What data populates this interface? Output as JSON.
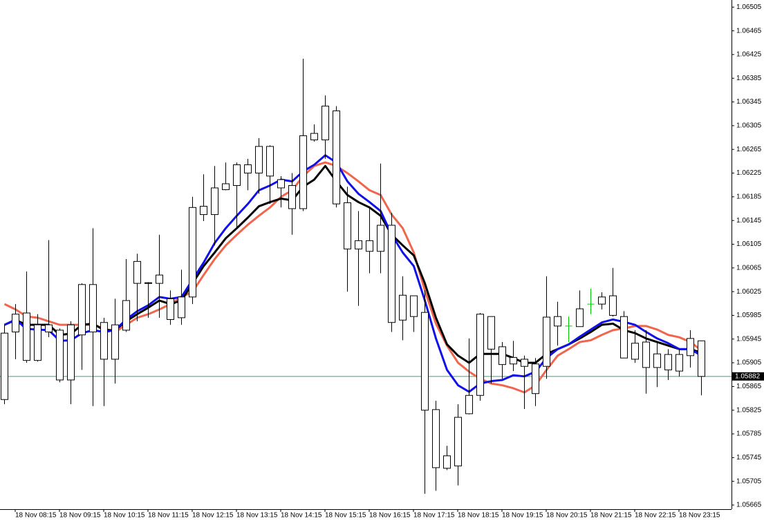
{
  "chart_data": {
    "type": "candlestick",
    "categories": [
      null,
      "18 Nov 08:15",
      null,
      null,
      null,
      "18 Nov 09:15",
      null,
      null,
      null,
      "18 Nov 10:15",
      null,
      null,
      null,
      "18 Nov 11:15",
      null,
      null,
      null,
      "18 Nov 12:15",
      null,
      null,
      null,
      "18 Nov 13:15",
      null,
      null,
      null,
      "18 Nov 14:15",
      null,
      null,
      null,
      "18 Nov 15:15",
      null,
      null,
      null,
      "18 Nov 16:15",
      null,
      null,
      null,
      "18 Nov 17:15",
      null,
      null,
      null,
      "18 Nov 18:15",
      null,
      null,
      null,
      "18 Nov 19:15",
      null,
      null,
      null,
      "18 Nov 20:15",
      null,
      null,
      null,
      "18 Nov 21:15",
      null,
      null,
      null,
      "18 Nov 22:15",
      null,
      null,
      null,
      "18 Nov 23:15",
      null,
      null
    ],
    "open": [
      1.05843,
      1.05987,
      1.05989,
      1.05909,
      1.05969,
      1.0596,
      1.05876,
      1.05952,
      1.06037,
      1.05973,
      1.05911,
      1.0596,
      1.06039,
      1.0604,
      1.06039,
      1.06013,
      1.05981,
      1.06016,
      1.06169,
      1.06155,
      1.06197,
      1.06204,
      1.06239,
      1.06225,
      1.0627,
      1.06214,
      1.06204,
      1.06165,
      1.06292,
      1.06281,
      1.0633,
      1.06175,
      1.06097,
      1.06111,
      1.06093,
      1.06137,
      1.05977,
      1.06018,
      1.0599,
      1.05826,
      1.05727,
      1.05731,
      1.05819,
      1.0585,
      1.05983,
      1.05932,
      1.05903,
      1.05911,
      1.05903,
      1.05899,
      1.05983,
      1.05967,
      1.05966,
      1.06004,
      1.06004,
      1.06018,
      1.05983,
      1.05911,
      1.0594,
      1.05897,
      1.05919,
      1.05891,
      1.05946,
      1.05942
    ],
    "high": [
      1.05969,
      1.06004,
      1.06059,
      1.05987,
      1.06112,
      1.05963,
      1.05975,
      1.06039,
      1.06132,
      1.05981,
      1.06013,
      1.0608,
      1.06089,
      1.06041,
      1.06121,
      1.06027,
      1.06062,
      1.06185,
      1.06223,
      1.06237,
      1.06243,
      1.06243,
      1.06249,
      1.06284,
      1.06272,
      1.0622,
      1.06225,
      1.06418,
      1.06307,
      1.06356,
      1.06338,
      1.06202,
      1.06161,
      1.06169,
      1.06241,
      1.06158,
      1.06051,
      1.06018,
      1.06027,
      1.05841,
      1.05765,
      1.05835,
      1.05946,
      1.05989,
      1.05983,
      1.0594,
      1.05942,
      1.05917,
      1.05913,
      1.06051,
      1.06008,
      1.05983,
      1.06027,
      1.0603,
      1.06024,
      1.06065,
      1.05992,
      1.0596,
      1.0596,
      1.0594,
      1.05928,
      1.05928,
      1.0596,
      1.05942
    ],
    "low": [
      1.05835,
      1.05911,
      1.05905,
      1.05907,
      1.05948,
      1.05872,
      1.05835,
      1.05893,
      1.05832,
      1.05832,
      1.0587,
      1.05957,
      1.05975,
      1.05981,
      1.05981,
      1.05969,
      1.05969,
      1.06004,
      1.06144,
      1.06103,
      1.06196,
      1.06132,
      1.06196,
      1.0619,
      1.06173,
      1.06167,
      1.06121,
      1.06161,
      1.06278,
      1.06249,
      1.06167,
      1.06025,
      1.06001,
      1.06056,
      1.06056,
      1.05957,
      1.05943,
      1.05957,
      1.05684,
      1.05689,
      1.05724,
      1.05698,
      1.05818,
      1.05841,
      1.0587,
      1.05878,
      1.05891,
      1.05827,
      1.05832,
      1.05878,
      1.05934,
      1.0594,
      1.05966,
      1.05987,
      1.05995,
      1.05983,
      1.05913,
      1.05905,
      1.05853,
      1.05864,
      1.05876,
      1.05882,
      1.05897,
      1.0585
    ],
    "close": [
      1.05955,
      1.05957,
      1.05909,
      1.05969,
      1.05957,
      1.05876,
      1.05969,
      1.06037,
      1.05957,
      1.05911,
      1.05969,
      1.0601,
      1.06076,
      1.06039,
      1.06053,
      1.05978,
      1.06016,
      1.06167,
      1.06155,
      1.062,
      1.06207,
      1.06239,
      1.06225,
      1.0627,
      1.0622,
      1.062,
      1.06165,
      1.06288,
      1.06281,
      1.06338,
      1.06173,
      1.06097,
      1.06111,
      1.06093,
      1.06137,
      1.05973,
      1.06019,
      1.05983,
      1.05825,
      1.05728,
      1.05748,
      1.05813,
      1.0585,
      1.05987,
      1.05928,
      1.05902,
      1.05914,
      1.05899,
      1.05853,
      1.05982,
      1.05967,
      1.05967,
      1.05996,
      1.06004,
      1.06016,
      1.05985,
      1.05913,
      1.05938,
      1.05897,
      1.0592,
      1.05893,
      1.05919,
      1.05917,
      1.05882
    ],
    "candle_color": "#000000",
    "doji_color": "#00c800",
    "overlays": [
      {
        "color": "#f0654c",
        "values": [
          1.06004,
          1.05995,
          1.05983,
          1.05981,
          1.05975,
          1.05969,
          1.05969,
          1.05969,
          1.05969,
          1.05963,
          1.05957,
          1.05969,
          1.05981,
          1.05987,
          1.05995,
          1.06004,
          1.06016,
          1.06025,
          1.06053,
          1.0608,
          1.06103,
          1.06121,
          1.06138,
          1.06153,
          1.06167,
          1.06185,
          1.06196,
          1.0622,
          1.06237,
          1.06243,
          1.06237,
          1.06225,
          1.06211,
          1.06196,
          1.06188,
          1.06155,
          1.06132,
          1.06091,
          1.06027,
          1.05971,
          1.05934,
          1.05905,
          1.0589,
          1.05878,
          1.0587,
          1.05867,
          1.05862,
          1.05855,
          1.05867,
          1.05893,
          1.05917,
          1.05928,
          1.0594,
          1.05943,
          1.05952,
          1.0596,
          1.05963,
          1.05967,
          1.05967,
          1.05961,
          1.05952,
          1.05948,
          1.0594,
          1.05926
        ]
      },
      {
        "color": "#000000",
        "values": [
          1.05969,
          1.05977,
          1.05969,
          1.05969,
          1.05969,
          1.05952,
          1.05954,
          1.05969,
          1.05971,
          1.0596,
          1.0596,
          1.05975,
          1.05987,
          1.05998,
          1.0601,
          1.06004,
          1.0601,
          1.06039,
          1.06068,
          1.06091,
          1.06115,
          1.06132,
          1.0615,
          1.06169,
          1.06176,
          1.06182,
          1.06179,
          1.06202,
          1.06214,
          1.06237,
          1.06211,
          1.06188,
          1.06176,
          1.06167,
          1.06153,
          1.06121,
          1.06103,
          1.06086,
          1.06039,
          1.05981,
          1.05936,
          1.05917,
          1.05905,
          1.0592,
          1.0592,
          1.0592,
          1.05913,
          1.05905,
          1.05905,
          1.0592,
          1.05928,
          1.05936,
          1.05946,
          1.05957,
          1.05969,
          1.05971,
          1.0596,
          1.05955,
          1.05946,
          1.0594,
          1.05934,
          1.05928,
          1.05928,
          1.05922
        ]
      },
      {
        "color": "#1010e8",
        "values": [
          1.05969,
          1.05978,
          1.05962,
          1.05961,
          1.0596,
          1.05942,
          1.05943,
          1.05955,
          1.0596,
          1.05957,
          1.0596,
          1.05978,
          1.05992,
          1.06002,
          1.06016,
          1.06013,
          1.06016,
          1.06045,
          1.06074,
          1.06107,
          1.06132,
          1.06153,
          1.06173,
          1.06196,
          1.06204,
          1.06214,
          1.06211,
          1.06228,
          1.06239,
          1.06255,
          1.06243,
          1.06211,
          1.0619,
          1.06176,
          1.06161,
          1.06121,
          1.06091,
          1.06068,
          1.0601,
          1.05946,
          1.05893,
          1.05867,
          1.05856,
          1.0587,
          1.05874,
          1.05876,
          1.05884,
          1.05882,
          1.0589,
          1.05913,
          1.05928,
          1.05936,
          1.05949,
          1.05961,
          1.05973,
          1.05978,
          1.05974,
          1.05969,
          1.05957,
          1.05946,
          1.05938,
          1.05928,
          1.05928,
          1.05917
        ]
      }
    ],
    "last_price": 1.05882,
    "last_price_color": "#5f8c78",
    "ylim": [
      1.05658,
      1.06517
    ],
    "yticks": [
      1.06505,
      1.06465,
      1.06425,
      1.06385,
      1.06345,
      1.06305,
      1.06265,
      1.06225,
      1.06185,
      1.06145,
      1.06105,
      1.06065,
      1.06025,
      1.05985,
      1.05945,
      1.05905,
      1.05865,
      1.05825,
      1.05785,
      1.05745,
      1.05705,
      1.05665
    ]
  }
}
